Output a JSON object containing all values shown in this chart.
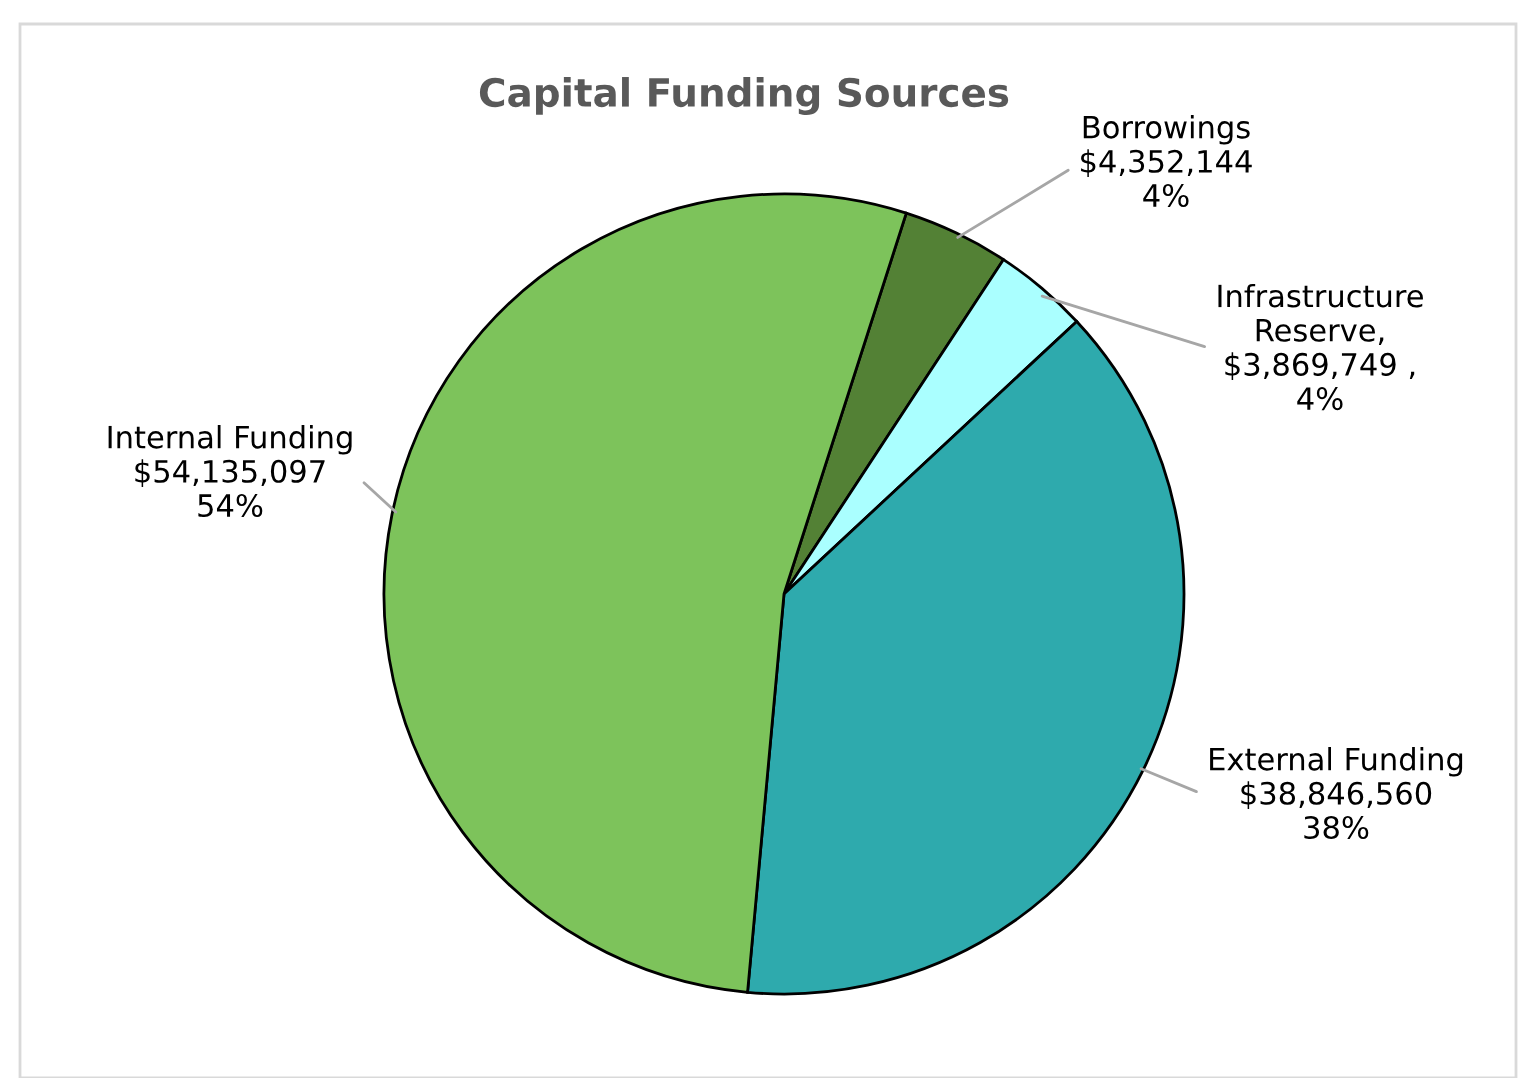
{
  "chart_data": {
    "type": "pie",
    "title": "Capital Funding Sources",
    "categories": [
      "Borrowings",
      "Infrastructure Reserve",
      "External Funding",
      "Internal Funding"
    ],
    "values": [
      4352144,
      3869749,
      38846560,
      54135097
    ],
    "colors": [
      "#538135",
      "#aaffff",
      "#2eaaad",
      "#7dc35b"
    ],
    "value_labels": [
      "\n$4,352,144\n4%",
      ",\n$3,869,749 ,\n4%",
      "\n$38,846,560\n38%",
      "\n$54,135,097\n54%"
    ]
  }
}
